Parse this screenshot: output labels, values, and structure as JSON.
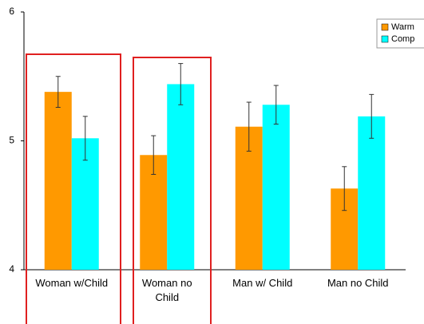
{
  "chart_data": {
    "type": "bar",
    "categories": [
      "Woman w/Child",
      "Woman no\nChild",
      "Man w/ Child",
      "Man no Child"
    ],
    "series": [
      {
        "name": "Warm",
        "color": "#ff9900",
        "values": [
          5.38,
          4.89,
          5.11,
          4.63
        ],
        "errors": [
          0.12,
          0.15,
          0.19,
          0.17
        ]
      },
      {
        "name": "Comp",
        "color": "#00ffff",
        "values": [
          5.02,
          5.44,
          5.28,
          5.19
        ],
        "errors": [
          0.17,
          0.16,
          0.15,
          0.17
        ]
      }
    ],
    "ylim": [
      4,
      6
    ],
    "yticks": [
      4,
      5,
      6
    ],
    "grid": false,
    "legend": "top-right"
  }
}
